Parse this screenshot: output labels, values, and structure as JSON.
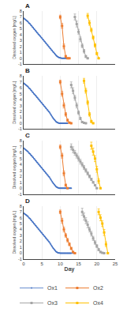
{
  "chart_data": [
    {
      "type": "line",
      "title": "A",
      "ylabel": "Dissolved oxygen [mg/L]",
      "xlim": [
        0,
        25
      ],
      "xticks": [
        0,
        5,
        10,
        15,
        20,
        25
      ],
      "ylim": [
        -1,
        8
      ],
      "yticks": [
        -1,
        0,
        1,
        2,
        3,
        4,
        5,
        6,
        7,
        8
      ],
      "grid": "x",
      "tick_labels": "y",
      "series": [
        {
          "name": "Ox1",
          "color": "#4472C4",
          "marker": "circle",
          "line_style": "solid",
          "x": [
            0,
            0.2,
            0.4,
            0.6,
            0.8,
            1.0,
            1.2,
            1.4,
            1.6,
            1.8,
            2.0,
            2.2,
            2.4,
            2.6,
            2.8,
            3.0,
            3.2,
            3.4,
            3.6,
            3.8,
            4.0,
            4.2,
            4.4,
            4.6,
            4.8,
            5.0,
            5.2,
            5.4,
            5.6,
            5.8,
            6.0,
            6.2,
            6.4,
            6.6,
            6.8,
            7.0,
            7.2,
            7.4,
            7.6,
            7.8,
            8.0,
            8.2,
            8.4,
            8.6,
            8.8,
            9.0,
            9.2,
            9.4,
            9.6,
            9.8,
            10.0,
            10.2,
            10.4,
            10.6,
            10.8,
            11.0,
            11.2,
            11.4,
            11.6,
            11.8,
            12.0
          ],
          "values": [
            6.8,
            6.7,
            6.6,
            6.5,
            6.4,
            6.3,
            6.2,
            6.0,
            5.9,
            5.8,
            5.6,
            5.5,
            5.3,
            5.2,
            5.0,
            4.9,
            4.7,
            4.6,
            4.4,
            4.3,
            4.1,
            4.0,
            3.8,
            3.7,
            3.5,
            3.4,
            3.2,
            3.1,
            2.9,
            2.8,
            2.6,
            2.5,
            2.3,
            2.2,
            2.0,
            1.9,
            1.7,
            1.6,
            1.4,
            1.3,
            1.1,
            1.0,
            0.85,
            0.7,
            0.55,
            0.4,
            0.3,
            0.22,
            0.15,
            0.1,
            0.06,
            0.03,
            0.01,
            0.0,
            0.0,
            0.0,
            0.0,
            0.0,
            0.0,
            0.0,
            0.0
          ]
        },
        {
          "name": "Ox2",
          "color": "#ED7D31",
          "marker": "square",
          "line_style": "solid",
          "x": [
            10.0,
            10.5,
            11.0,
            11.5,
            12.0,
            12.5
          ],
          "values": [
            7.0,
            5.5,
            2.0,
            0.3,
            0.0,
            0.0
          ],
          "yerr": [
            0.3,
            0.4,
            0.4,
            0.2,
            0.05,
            0.0
          ]
        },
        {
          "name": "Ox3",
          "color": "#A5A5A5",
          "marker": "square",
          "line_style": "solid",
          "x": [
            14.0,
            14.5,
            15.0,
            15.5,
            16.0,
            16.5,
            17.0,
            17.5
          ],
          "values": [
            7.0,
            5.8,
            4.5,
            3.2,
            2.1,
            1.2,
            0.3,
            0.0
          ],
          "yerr": [
            0.5,
            0.5,
            0.4,
            0.4,
            0.3,
            0.3,
            0.2,
            0.05
          ]
        },
        {
          "name": "Ox4",
          "color": "#FFC000",
          "marker": "square",
          "line_style": "solid",
          "x": [
            17.5,
            18.0,
            18.5,
            19.0,
            19.5,
            20.0,
            20.5
          ],
          "values": [
            7.2,
            6.0,
            4.8,
            3.5,
            2.2,
            0.8,
            0.0
          ],
          "yerr": [
            0.4,
            0.4,
            0.3,
            0.3,
            0.3,
            0.2,
            0.05
          ]
        }
      ]
    },
    {
      "type": "line",
      "title": "B",
      "ylabel": "Dissolved oxygen [mg/L]",
      "xlim": [
        0,
        25
      ],
      "xticks": [
        0,
        5,
        10,
        15,
        20,
        25
      ],
      "ylim": [
        -1,
        8
      ],
      "yticks": [
        -1,
        0,
        1,
        2,
        3,
        4,
        5,
        6,
        7,
        8
      ],
      "grid": "x",
      "tick_labels": "y",
      "series": [
        {
          "name": "Ox1",
          "color": "#4472C4",
          "marker": "circle",
          "line_style": "solid",
          "x": [
            0,
            0.2,
            0.4,
            0.6,
            0.8,
            1.0,
            1.2,
            1.4,
            1.6,
            1.8,
            2.0,
            2.2,
            2.4,
            2.6,
            2.8,
            3.0,
            3.2,
            3.4,
            3.6,
            3.8,
            4.0,
            4.2,
            4.4,
            4.6,
            4.8,
            5.0,
            5.2,
            5.4,
            5.6,
            5.8,
            6.0,
            6.2,
            6.4,
            6.6,
            6.8,
            7.0,
            7.2,
            7.4,
            7.6,
            7.8,
            8.0,
            8.2,
            8.4,
            8.6,
            8.8,
            9.0,
            9.2,
            9.4,
            9.6,
            9.8,
            10.0,
            10.2,
            10.4,
            10.6,
            10.8,
            11.0,
            11.2,
            11.4,
            11.6,
            11.8,
            12.0
          ],
          "values": [
            6.8,
            6.7,
            6.6,
            6.5,
            6.4,
            6.3,
            6.2,
            6.0,
            5.9,
            5.8,
            5.6,
            5.5,
            5.3,
            5.2,
            5.0,
            4.9,
            4.7,
            4.6,
            4.4,
            4.3,
            4.1,
            4.0,
            3.8,
            3.7,
            3.5,
            3.4,
            3.2,
            3.1,
            2.9,
            2.8,
            2.6,
            2.5,
            2.3,
            2.2,
            2.0,
            1.9,
            1.7,
            1.5,
            1.3,
            1.1,
            0.9,
            0.75,
            0.6,
            0.45,
            0.3,
            0.2,
            0.12,
            0.07,
            0.03,
            0.01,
            0.0,
            0.0,
            0.0,
            0.0,
            0.0,
            0.0,
            0.0,
            0.0,
            0.0,
            0.0,
            0.0
          ]
        },
        {
          "name": "Ox2",
          "color": "#ED7D31",
          "marker": "square",
          "line_style": "solid",
          "x": [
            10.0,
            10.5,
            11.0,
            11.5,
            12.0,
            12.5,
            13.0
          ],
          "values": [
            7.0,
            5.0,
            3.0,
            1.5,
            0.5,
            0.1,
            0.0
          ],
          "yerr": [
            0.3,
            0.4,
            0.4,
            0.3,
            0.2,
            0.1,
            0.0
          ]
        },
        {
          "name": "Ox3",
          "color": "#A5A5A5",
          "marker": "square",
          "line_style": "solid",
          "x": [
            13.0,
            13.5,
            14.0,
            14.5,
            15.0,
            15.5,
            16.0,
            16.5,
            17.0
          ],
          "values": [
            6.5,
            5.5,
            4.3,
            3.0,
            1.8,
            0.8,
            0.2,
            0.05,
            0.0
          ],
          "yerr": [
            0.5,
            0.5,
            0.4,
            0.4,
            0.3,
            0.2,
            0.1,
            0.05,
            0.0
          ]
        },
        {
          "name": "Ox4",
          "color": "#FFC000",
          "marker": "square",
          "line_style": "solid",
          "x": [
            16.5,
            17.0,
            17.5,
            18.0,
            18.5,
            19.0
          ],
          "values": [
            7.2,
            5.5,
            3.5,
            1.5,
            0.3,
            0.0
          ],
          "yerr": [
            0.4,
            0.4,
            0.3,
            0.3,
            0.2,
            0.05
          ]
        }
      ]
    },
    {
      "type": "line",
      "title": "C",
      "ylabel": "Dissolved oxygen [mg/L]",
      "xlim": [
        0,
        25
      ],
      "xticks": [
        0,
        5,
        10,
        15,
        20,
        25
      ],
      "ylim": [
        -1,
        8
      ],
      "yticks": [
        -1,
        0,
        1,
        2,
        3,
        4,
        5,
        6,
        7,
        8
      ],
      "grid": "x",
      "tick_labels": "y",
      "series": [
        {
          "name": "Ox1",
          "color": "#4472C4",
          "marker": "circle",
          "line_style": "solid",
          "x": [
            0,
            0.2,
            0.4,
            0.6,
            0.8,
            1.0,
            1.2,
            1.4,
            1.6,
            1.8,
            2.0,
            2.2,
            2.4,
            2.6,
            2.8,
            3.0,
            3.2,
            3.4,
            3.6,
            3.8,
            4.0,
            4.2,
            4.4,
            4.6,
            4.8,
            5.0,
            5.2,
            5.4,
            5.6,
            5.8,
            6.0,
            6.2,
            6.4,
            6.6,
            6.8,
            7.0,
            7.2,
            7.4,
            7.6,
            7.8,
            8.0,
            8.2,
            8.4,
            8.6,
            8.8,
            9.0,
            9.2,
            9.4,
            9.6,
            9.8,
            10.0,
            10.2,
            10.4,
            10.6,
            10.8,
            11.0,
            11.2,
            11.4,
            11.6,
            11.8,
            12.0,
            12.2,
            12.4,
            12.6,
            12.8,
            13.0
          ],
          "values": [
            6.8,
            6.7,
            6.6,
            6.5,
            6.4,
            6.3,
            6.2,
            6.0,
            5.9,
            5.8,
            5.6,
            5.5,
            5.3,
            5.2,
            5.0,
            4.9,
            4.7,
            4.6,
            4.4,
            4.3,
            4.1,
            4.0,
            3.8,
            3.7,
            3.5,
            3.4,
            3.2,
            3.1,
            2.9,
            2.8,
            2.6,
            2.5,
            2.3,
            2.2,
            2.0,
            1.9,
            1.7,
            1.5,
            1.3,
            1.1,
            0.9,
            0.75,
            0.6,
            0.45,
            0.3,
            0.2,
            0.12,
            0.07,
            0.03,
            0.01,
            0.0,
            0.0,
            0.0,
            0.0,
            0.0,
            0.0,
            0.0,
            0.0,
            0.0,
            0.0,
            0.0,
            0.0,
            0.0,
            0.0,
            0.0,
            0.0
          ]
        },
        {
          "name": "Ox2",
          "color": "#ED7D31",
          "marker": "square",
          "line_style": "solid",
          "x": [
            10.0,
            10.5,
            11.0,
            11.5,
            12.0
          ],
          "values": [
            7.0,
            5.5,
            2.5,
            0.5,
            0.0
          ],
          "yerr": [
            0.3,
            0.4,
            0.4,
            0.2,
            0.05
          ]
        },
        {
          "name": "Ox3",
          "color": "#A5A5A5",
          "marker": "square",
          "line_style": "solid",
          "x": [
            13.0,
            13.5,
            14.0,
            14.5,
            15.0,
            15.5,
            16.0,
            16.5,
            17.0,
            17.5,
            18.0,
            18.5,
            19.0,
            19.5,
            20.0
          ],
          "values": [
            7.0,
            6.5,
            6.0,
            5.5,
            5.0,
            4.5,
            4.0,
            3.5,
            3.0,
            2.5,
            2.0,
            1.5,
            1.0,
            0.5,
            0.0
          ],
          "yerr": [
            0.5,
            0.5,
            0.4,
            0.4,
            0.4,
            0.4,
            0.35,
            0.35,
            0.3,
            0.3,
            0.25,
            0.2,
            0.15,
            0.1,
            0.05
          ]
        },
        {
          "name": "Ox4",
          "color": "#FFC000",
          "marker": "square",
          "line_style": "solid",
          "x": [
            18.5,
            19.0,
            19.5,
            20.0,
            20.5,
            21.0
          ],
          "values": [
            7.2,
            6.2,
            5.0,
            3.2,
            1.2,
            0.0
          ],
          "yerr": [
            0.6,
            0.6,
            0.5,
            0.5,
            0.4,
            0.1
          ]
        }
      ]
    },
    {
      "type": "line",
      "title": "D",
      "ylabel": "Dissolved oxygen [mg/L]",
      "xlabel": "Day",
      "xlim": [
        0,
        25
      ],
      "xticks": [
        0,
        5,
        10,
        15,
        20,
        25
      ],
      "ylim": [
        -1,
        8
      ],
      "yticks": [
        -1,
        0,
        1,
        2,
        3,
        4,
        5,
        6,
        7,
        8
      ],
      "grid": "x",
      "legend": "bottom",
      "series": [
        {
          "name": "Ox1",
          "color": "#4472C4",
          "marker": "circle",
          "line_style": "solid",
          "x": [
            0,
            0.2,
            0.4,
            0.6,
            0.8,
            1.0,
            1.2,
            1.4,
            1.6,
            1.8,
            2.0,
            2.2,
            2.4,
            2.6,
            2.8,
            3.0,
            3.2,
            3.4,
            3.6,
            3.8,
            4.0,
            4.2,
            4.4,
            4.6,
            4.8,
            5.0,
            5.2,
            5.4,
            5.6,
            5.8,
            6.0,
            6.2,
            6.4,
            6.6,
            6.8,
            7.0,
            7.2,
            7.4,
            7.6,
            7.8,
            8.0,
            8.2,
            8.4,
            8.6,
            8.8,
            9.0,
            9.2,
            9.4,
            9.6,
            9.8,
            10.0,
            10.2,
            10.4,
            10.6,
            10.8,
            11.0,
            11.2,
            11.4,
            11.6,
            11.8,
            12.0,
            12.2,
            12.4,
            12.6,
            12.8,
            13.0,
            13.5
          ],
          "values": [
            6.8,
            6.7,
            6.6,
            6.5,
            6.4,
            6.3,
            6.2,
            6.0,
            5.9,
            5.8,
            5.6,
            5.5,
            5.3,
            5.2,
            5.0,
            4.9,
            4.7,
            4.6,
            4.4,
            4.3,
            4.1,
            4.0,
            3.8,
            3.7,
            3.5,
            3.4,
            3.2,
            3.1,
            2.9,
            2.8,
            2.6,
            2.5,
            2.3,
            2.2,
            2.0,
            1.9,
            1.7,
            1.5,
            1.3,
            1.1,
            0.9,
            0.75,
            0.6,
            0.45,
            0.3,
            0.2,
            0.12,
            0.07,
            0.03,
            0.01,
            0.0,
            0.0,
            0.0,
            0.0,
            0.0,
            0.0,
            0.0,
            0.0,
            0.0,
            0.0,
            0.0,
            0.0,
            0.0,
            0.0,
            0.0,
            0.0,
            0.0
          ]
        },
        {
          "name": "Ox2",
          "color": "#ED7D31",
          "marker": "square",
          "line_style": "solid",
          "x": [
            10.0,
            10.5,
            11.0,
            11.5,
            12.0,
            12.5,
            13.0,
            13.5,
            14.0
          ],
          "values": [
            7.0,
            5.5,
            4.0,
            3.0,
            2.2,
            1.5,
            0.8,
            0.2,
            0.0
          ],
          "yerr": [
            0.3,
            0.4,
            0.4,
            0.3,
            0.3,
            0.25,
            0.2,
            0.1,
            0.05
          ]
        },
        {
          "name": "Ox3",
          "color": "#A5A5A5",
          "marker": "square",
          "line_style": "solid",
          "x": [
            16.0,
            16.5,
            17.0,
            17.5,
            18.0,
            18.5,
            19.0,
            19.5,
            20.0,
            20.5,
            21.0,
            21.5,
            22.0
          ],
          "values": [
            7.0,
            6.2,
            5.5,
            4.8,
            4.0,
            3.3,
            2.5,
            1.8,
            1.2,
            0.6,
            0.2,
            0.05,
            0.0
          ],
          "yerr": [
            0.6,
            0.6,
            0.5,
            0.5,
            0.4,
            0.4,
            0.35,
            0.3,
            0.25,
            0.2,
            0.1,
            0.05,
            0.0
          ]
        },
        {
          "name": "Ox4",
          "color": "#FFC000",
          "marker": "square",
          "line_style": "solid",
          "x": [
            20.5,
            21.0,
            21.5,
            22.0,
            22.5,
            23.0
          ],
          "values": [
            7.0,
            6.0,
            5.0,
            3.5,
            1.5,
            0.0
          ],
          "yerr": [
            0.5,
            0.5,
            0.5,
            0.5,
            0.4,
            0.1
          ]
        }
      ]
    }
  ]
}
